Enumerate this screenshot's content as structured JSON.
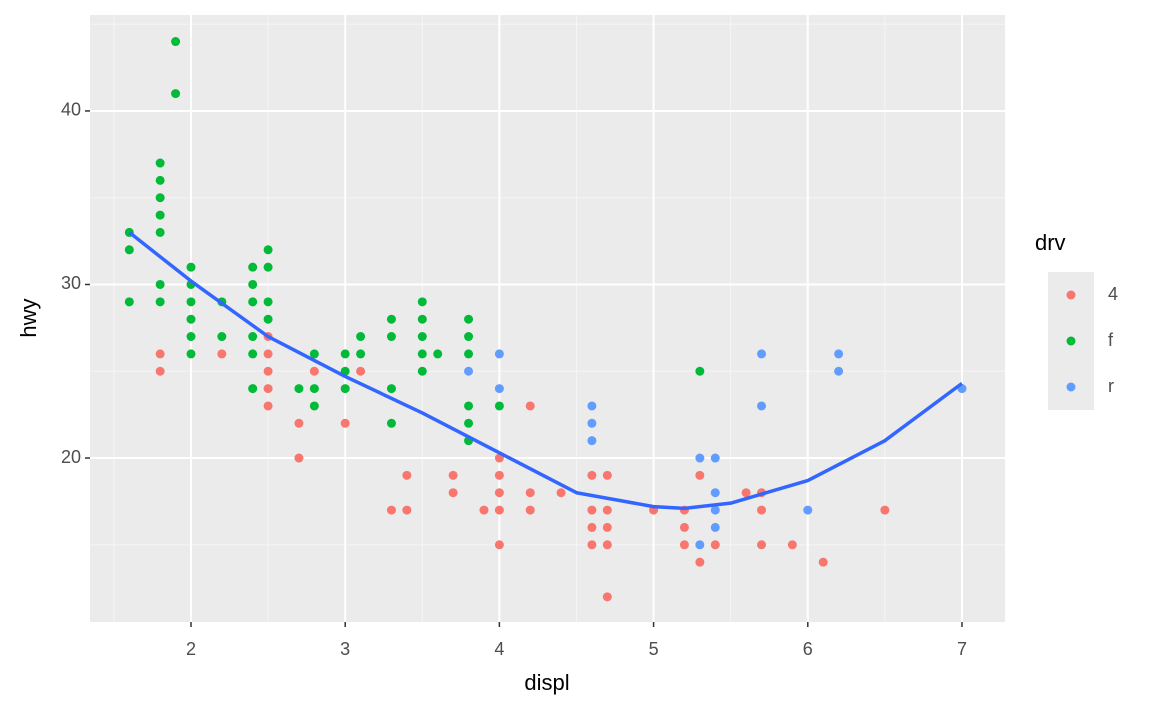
{
  "chart_data": {
    "type": "scatter",
    "x_label": "displ",
    "y_label": "hwy",
    "legend_title": "drv",
    "legend_position": "right",
    "xlim": [
      1.345,
      7.279
    ],
    "ylim": [
      10.55,
      45.53
    ],
    "xticks": [
      2,
      3,
      4,
      5,
      6,
      7
    ],
    "yticks": [
      20,
      30,
      40
    ],
    "x_minor_grid": [
      1.5,
      2.5,
      3.5,
      4.5,
      5.5,
      6.5
    ],
    "y_minor_grid": [
      15,
      25,
      35,
      45
    ],
    "grid": true,
    "series": [
      {
        "name": "4",
        "color": "#F8766D",
        "x": [
          1.8,
          1.8,
          2.2,
          2.5,
          2.5,
          2.5,
          2.5,
          2.5,
          2.7,
          2.7,
          2.8,
          3,
          3.1,
          3.3,
          3.4,
          3.4,
          3.7,
          3.7,
          3.9,
          4,
          4,
          4,
          4,
          4,
          4.2,
          4.2,
          4.2,
          4.4,
          4.6,
          4.6,
          4.6,
          4.6,
          4.7,
          4.7,
          4.7,
          4.7,
          4.7,
          5,
          5.2,
          5.2,
          5.2,
          5.3,
          5.3,
          5.4,
          5.6,
          5.7,
          5.7,
          5.7,
          5.9,
          6.1,
          6.5
        ],
        "values": [
          26,
          25,
          26,
          27,
          26,
          25,
          24,
          23,
          22,
          20,
          25,
          22,
          25,
          17,
          19,
          17,
          19,
          18,
          17,
          20,
          19,
          18,
          17,
          15,
          23,
          18,
          17,
          18,
          19,
          17,
          16,
          15,
          19,
          17,
          16,
          15,
          12,
          17,
          17,
          16,
          15,
          19,
          14,
          15,
          18,
          18,
          17,
          15,
          15,
          14,
          17
        ]
      },
      {
        "name": "f",
        "color": "#00BA38",
        "x": [
          1.6,
          1.6,
          1.6,
          1.8,
          1.8,
          1.8,
          1.8,
          1.8,
          1.8,
          1.8,
          1.9,
          1.9,
          2,
          2,
          2,
          2,
          2,
          2,
          2.2,
          2.2,
          2.4,
          2.4,
          2.4,
          2.4,
          2.4,
          2.4,
          2.5,
          2.5,
          2.5,
          2.5,
          2.7,
          2.8,
          2.8,
          2.8,
          3,
          3,
          3,
          3.1,
          3.1,
          3.3,
          3.3,
          3.3,
          3.3,
          3.5,
          3.5,
          3.5,
          3.5,
          3.5,
          3.6,
          3.8,
          3.8,
          3.8,
          3.8,
          3.8,
          3.8,
          4,
          5.3
        ],
        "values": [
          33,
          32,
          29,
          37,
          36,
          35,
          34,
          33,
          30,
          29,
          44,
          41,
          31,
          30,
          29,
          28,
          27,
          26,
          29,
          27,
          31,
          30,
          29,
          27,
          26,
          24,
          32,
          31,
          29,
          28,
          24,
          26,
          24,
          23,
          26,
          25,
          24,
          27,
          26,
          28,
          27,
          24,
          22,
          29,
          28,
          27,
          26,
          25,
          26,
          28,
          27,
          26,
          23,
          22,
          21,
          23,
          25
        ]
      },
      {
        "name": "r",
        "color": "#619CFF",
        "x": [
          3.8,
          4,
          4,
          4.6,
          4.6,
          4.6,
          5.3,
          5.3,
          5.4,
          5.4,
          5.4,
          5.4,
          5.7,
          5.7,
          6,
          6.2,
          6.2,
          7
        ],
        "values": [
          25,
          26,
          24,
          23,
          22,
          21,
          20,
          15,
          20,
          18,
          17,
          16,
          26,
          23,
          17,
          26,
          25,
          24
        ]
      }
    ],
    "smooth": {
      "color": "#3366FF",
      "x": [
        1.6,
        2,
        2.5,
        3,
        3.5,
        4,
        4.5,
        5,
        5.2,
        5.5,
        6,
        6.5,
        7
      ],
      "values": [
        33,
        30.2,
        27,
        24.7,
        22.6,
        20.3,
        18,
        17.2,
        17.1,
        17.4,
        18.7,
        21,
        24.3
      ]
    }
  }
}
